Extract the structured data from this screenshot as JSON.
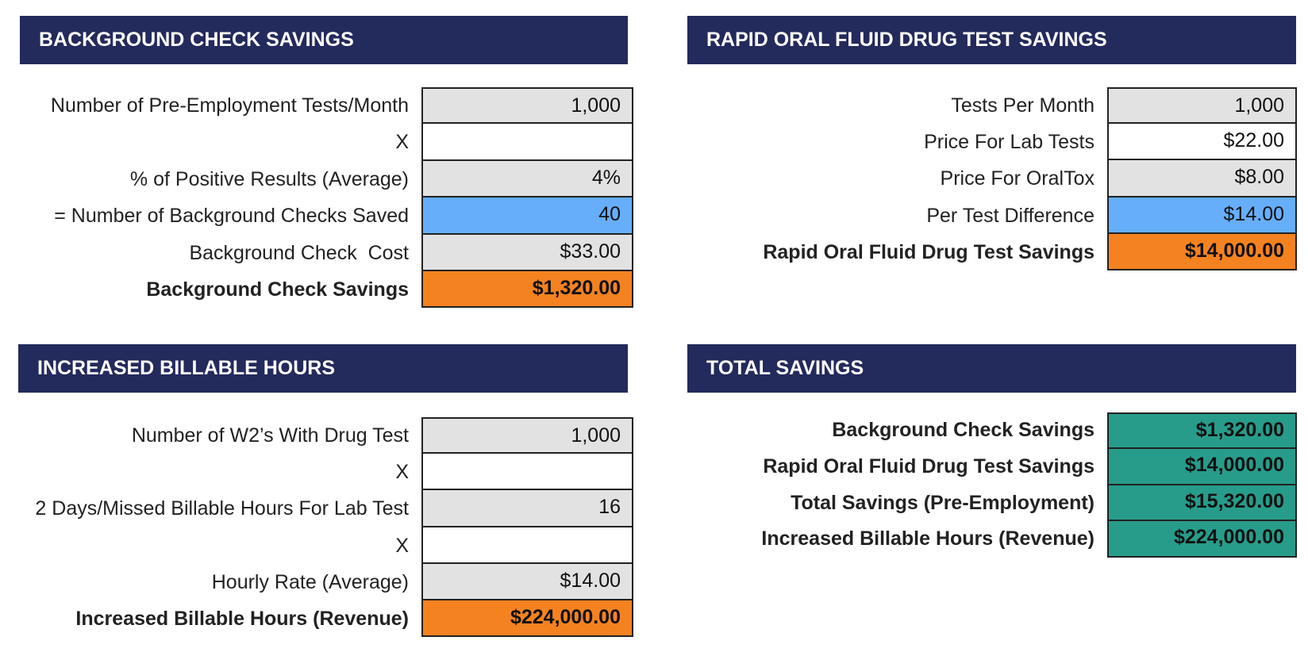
{
  "panels": [
    {
      "title": "BACKGROUND CHECK SAVINGS",
      "rows": [
        {
          "label": "Number of Pre-Employment Tests/Month",
          "value": "1,000",
          "fill": "#e2e2e2"
        },
        {
          "label": "X",
          "fill": "#ffffff"
        },
        {
          "label": "% of Positive Results (Average)",
          "value": "4%",
          "fill": "#e2e2e2"
        },
        {
          "label": "= Number of Background Checks Saved",
          "value": "40",
          "fill": "#66aefa"
        },
        {
          "label": "Background Check  Cost",
          "value": "$33.00",
          "fill": "#e2e2e2"
        },
        {
          "label": "Background Check Savings",
          "value": "$1,320.00",
          "fill": "#f58220",
          "bold": true
        }
      ]
    },
    {
      "title": "RAPID ORAL FLUID DRUG TEST SAVINGS",
      "rows": [
        {
          "label": "Tests Per Month",
          "value": "1,000",
          "fill": "#e2e2e2"
        },
        {
          "label": "Price For Lab Tests",
          "value": "$22.00",
          "fill": "#ffffff"
        },
        {
          "label": "Price For OralTox",
          "value": "$8.00",
          "fill": "#e2e2e2"
        },
        {
          "label": "Per Test Difference",
          "value": "$14.00",
          "fill": "#66aefa"
        },
        {
          "label": "Rapid Oral Fluid Drug Test Savings",
          "value": "$14,000.00",
          "fill": "#f58220",
          "bold": true
        }
      ]
    },
    {
      "title": "INCREASED BILLABLE HOURS",
      "rows": [
        {
          "label": "Number of W2’s With Drug Test",
          "value": "1,000",
          "fill": "#e2e2e2"
        },
        {
          "label": "X",
          "fill": "#ffffff"
        },
        {
          "label": "2 Days/Missed Billable Hours For Lab Test",
          "value": "16",
          "fill": "#e2e2e2"
        },
        {
          "label": "X",
          "fill": "#ffffff"
        },
        {
          "label": "Hourly Rate (Average)",
          "value": "$14.00",
          "fill": "#e2e2e2"
        },
        {
          "label": "Increased Billable Hours (Revenue)",
          "value": "$224,000.00",
          "fill": "#f58220",
          "bold": true
        }
      ]
    },
    {
      "title": "TOTAL SAVINGS",
      "rows": [
        {
          "label": "Background Check Savings",
          "value": "$1,320.00",
          "fill": "#279c8a",
          "bold": true
        },
        {
          "label": "Rapid Oral Fluid Drug Test Savings",
          "value": "$14,000.00",
          "fill": "#279c8a",
          "bold": true
        },
        {
          "label": "Total Savings (Pre-Employment)",
          "value": "$15,320.00",
          "fill": "#279c8a",
          "bold": true
        },
        {
          "label": "Increased Billable Hours (Revenue)",
          "value": "$224,000.00",
          "fill": "#279c8a",
          "bold": true
        }
      ]
    }
  ]
}
